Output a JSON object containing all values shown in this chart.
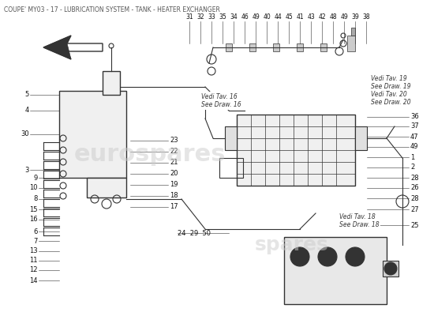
{
  "title": "COUPE' MY03 - 17 - LUBRICATION SYSTEM - TANK - HEATER EXCHANGER",
  "bg_color": "#ffffff",
  "title_color": "#555555",
  "title_fontsize": 5.5,
  "diagram_line_color": "#333333",
  "watermark_text": "eurospar es",
  "watermark2_text": "spares",
  "arrow_label": "",
  "left_part_numbers": [
    "5",
    "4",
    "30",
    "3",
    "9",
    "10",
    "8",
    "15",
    "16",
    "6",
    "7",
    "13",
    "11",
    "12",
    "14"
  ],
  "right_part_numbers": [
    "36",
    "37",
    "47",
    "49",
    "1",
    "2",
    "28",
    "26",
    "28",
    "27",
    "25"
  ],
  "top_part_numbers": [
    "31",
    "32",
    "33",
    "35",
    "34",
    "46",
    "49",
    "40",
    "44",
    "45",
    "41",
    "43",
    "42",
    "48",
    "49",
    "39",
    "38"
  ],
  "middle_part_numbers": [
    "23",
    "22",
    "21",
    "20",
    "19",
    "18",
    "17"
  ],
  "bottom_mid_numbers": [
    "24",
    "29",
    "50"
  ],
  "vedi_tav16": "Vedi Tav. 16\nSee Draw. 16",
  "vedi_tav18": "Vedi Tav. 18\nSee Draw. 18",
  "vedi_tav19": "Vedi Tav. 19\nSee Draw. 19",
  "vedi_tav20": "Vedi Tav. 20\nSee Draw. 20"
}
